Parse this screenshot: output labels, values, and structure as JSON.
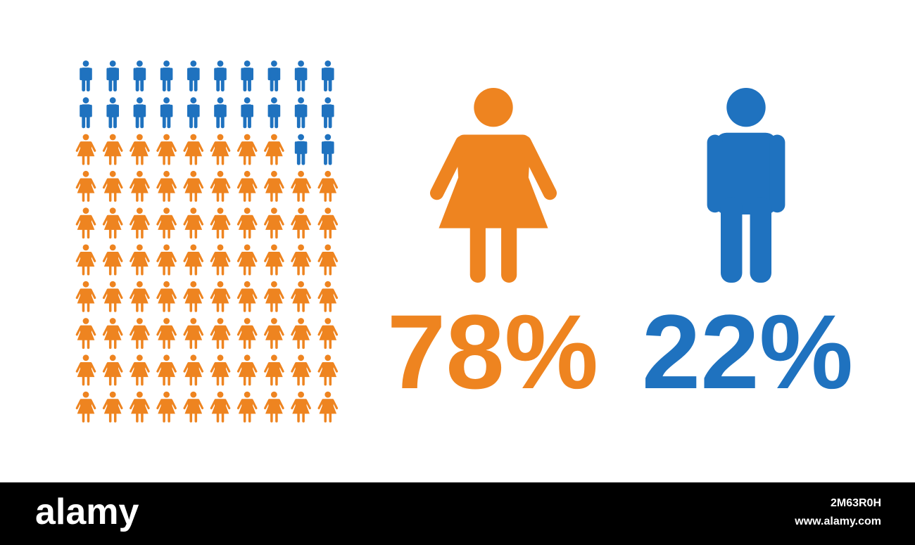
{
  "chart_data": {
    "type": "pictogram",
    "values": [
      78,
      22
    ],
    "value_labels": [
      "78%",
      "22%"
    ],
    "colors": [
      "#ee8420",
      "#1f72bf"
    ],
    "icons": [
      "woman",
      "man"
    ]
  },
  "footer": {
    "brand": "alamy",
    "image_id": "2M63R0H",
    "url": "www.alamy.com"
  }
}
